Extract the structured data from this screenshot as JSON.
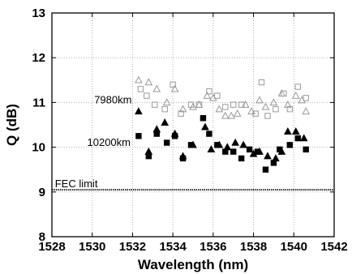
{
  "chart_data": {
    "type": "scatter",
    "title": "",
    "xlabel": "Wavelength (nm)",
    "ylabel": "Q (dB)",
    "xlim": [
      1528,
      1542
    ],
    "ylim": [
      8,
      13
    ],
    "xticks": [
      1528,
      1530,
      1532,
      1534,
      1536,
      1538,
      1540,
      1542
    ],
    "yticks": [
      8,
      9,
      10,
      11,
      12,
      13
    ],
    "grid": true,
    "series": [
      {
        "marker": "open-triangle",
        "color": "#999999",
        "points": [
          [
            1532.3,
            11.5
          ],
          [
            1532.8,
            11.45
          ],
          [
            1533.2,
            11.3
          ],
          [
            1533.7,
            11.0
          ],
          [
            1534.1,
            11.3
          ],
          [
            1534.5,
            10.85
          ],
          [
            1535.0,
            10.9
          ],
          [
            1535.3,
            10.95
          ],
          [
            1535.7,
            11.15
          ],
          [
            1536.0,
            11.1
          ],
          [
            1536.3,
            10.85
          ],
          [
            1536.6,
            10.7
          ],
          [
            1536.9,
            10.7
          ],
          [
            1537.2,
            10.75
          ],
          [
            1537.6,
            10.95
          ],
          [
            1537.9,
            10.8
          ],
          [
            1538.3,
            11.05
          ],
          [
            1538.6,
            10.9
          ],
          [
            1539.0,
            11.0
          ],
          [
            1539.4,
            11.2
          ],
          [
            1539.7,
            10.95
          ],
          [
            1540.1,
            11.15
          ],
          [
            1540.4,
            11.05
          ],
          [
            1540.6,
            10.8
          ]
        ]
      },
      {
        "marker": "open-square",
        "color": "#999999",
        "points": [
          [
            1532.4,
            11.3
          ],
          [
            1532.7,
            11.15
          ],
          [
            1533.1,
            10.95
          ],
          [
            1533.6,
            10.85
          ],
          [
            1534.0,
            11.4
          ],
          [
            1534.4,
            10.75
          ],
          [
            1534.9,
            10.95
          ],
          [
            1535.3,
            10.95
          ],
          [
            1535.8,
            11.25
          ],
          [
            1536.2,
            11.15
          ],
          [
            1536.6,
            10.9
          ],
          [
            1537.0,
            10.95
          ],
          [
            1537.4,
            10.95
          ],
          [
            1538.1,
            10.75
          ],
          [
            1538.4,
            11.45
          ],
          [
            1538.7,
            10.7
          ],
          [
            1539.1,
            10.85
          ],
          [
            1539.5,
            11.2
          ],
          [
            1539.8,
            10.85
          ],
          [
            1540.2,
            11.35
          ],
          [
            1540.6,
            11.1
          ]
        ]
      },
      {
        "marker": "filled-triangle",
        "color": "#000000",
        "points": [
          [
            1532.3,
            10.8
          ],
          [
            1532.8,
            9.9
          ],
          [
            1533.2,
            10.4
          ],
          [
            1533.6,
            10.55
          ],
          [
            1534.1,
            10.3
          ],
          [
            1534.5,
            9.8
          ],
          [
            1535.0,
            10.05
          ],
          [
            1535.6,
            10.45
          ],
          [
            1535.9,
            9.95
          ],
          [
            1536.3,
            10.05
          ],
          [
            1536.7,
            10.0
          ],
          [
            1537.1,
            10.1
          ],
          [
            1537.5,
            10.05
          ],
          [
            1538.0,
            9.85
          ],
          [
            1538.3,
            9.9
          ],
          [
            1538.7,
            9.8
          ],
          [
            1539.1,
            9.75
          ],
          [
            1539.4,
            9.9
          ],
          [
            1539.7,
            10.35
          ],
          [
            1540.1,
            10.35
          ],
          [
            1540.5,
            10.2
          ]
        ]
      },
      {
        "marker": "filled-square",
        "color": "#000000",
        "points": [
          [
            1532.3,
            10.25
          ],
          [
            1532.8,
            9.8
          ],
          [
            1533.2,
            10.3
          ],
          [
            1533.7,
            10.1
          ],
          [
            1534.1,
            10.25
          ],
          [
            1534.5,
            9.75
          ],
          [
            1534.9,
            10.05
          ],
          [
            1535.5,
            10.65
          ],
          [
            1535.8,
            10.3
          ],
          [
            1536.2,
            10.05
          ],
          [
            1536.6,
            9.9
          ],
          [
            1537.0,
            9.9
          ],
          [
            1537.4,
            9.75
          ],
          [
            1537.8,
            9.95
          ],
          [
            1538.2,
            9.9
          ],
          [
            1538.6,
            9.5
          ],
          [
            1539.0,
            9.65
          ],
          [
            1539.3,
            9.95
          ],
          [
            1539.8,
            10.05
          ],
          [
            1540.2,
            10.2
          ],
          [
            1540.6,
            9.95
          ]
        ]
      }
    ],
    "annotations": [
      {
        "text": "7980km",
        "x": 1530.1,
        "y": 11.05
      },
      {
        "text": "10200km",
        "x": 1529.75,
        "y": 10.1
      },
      {
        "text": "FEC limit",
        "x": 1528.15,
        "y": 9.18
      }
    ],
    "reference_line": {
      "y": 9.05,
      "color": "#000000"
    }
  }
}
